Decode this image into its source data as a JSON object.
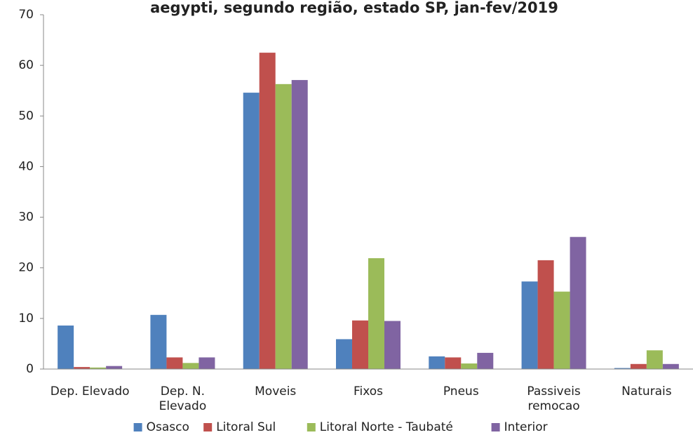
{
  "chart_data": {
    "type": "bar",
    "title": "aegypti, segundo região, estado SP, jan-fev/2019",
    "categories": [
      "Dep. Elevado",
      "Dep. N.\nElevado",
      "Moveis",
      "Fixos",
      "Pneus",
      "Passiveis\nremocao",
      "Naturais"
    ],
    "series": [
      {
        "name": "Osasco",
        "color": "#4f81bd",
        "values": [
          8.6,
          10.7,
          54.6,
          5.9,
          2.5,
          17.3,
          0.2
        ]
      },
      {
        "name": "Litoral Sul",
        "color": "#c0504d",
        "values": [
          0.4,
          2.3,
          62.5,
          9.6,
          2.3,
          21.5,
          1.0
        ]
      },
      {
        "name": "Litoral Norte - Taubaté",
        "color": "#9bbb59",
        "values": [
          0.3,
          1.2,
          56.3,
          21.9,
          1.1,
          15.3,
          3.7
        ]
      },
      {
        "name": "Interior",
        "color": "#8064a2",
        "values": [
          0.6,
          2.3,
          57.1,
          9.5,
          3.2,
          26.1,
          1.0
        ]
      }
    ],
    "ylim": [
      0,
      70
    ],
    "yticks": [
      0,
      10,
      20,
      30,
      40,
      50,
      60,
      70
    ],
    "grid": false,
    "legend": "bottom"
  }
}
